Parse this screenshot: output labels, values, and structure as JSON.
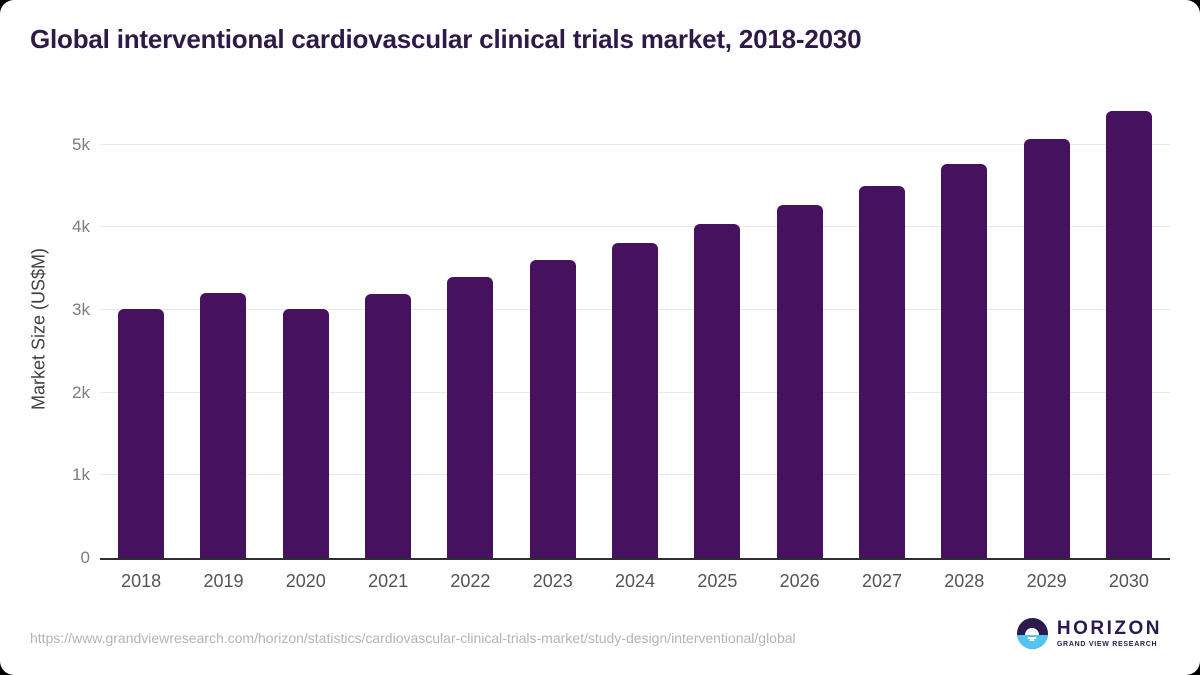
{
  "page": {
    "title": "Global interventional cardiovascular clinical trials market, 2018-2030"
  },
  "chart_data": {
    "type": "bar",
    "title": "Global interventional cardiovascular clinical trials market, 2018-2030",
    "categories": [
      "2018",
      "2019",
      "2020",
      "2021",
      "2022",
      "2023",
      "2024",
      "2025",
      "2026",
      "2027",
      "2028",
      "2029",
      "2030"
    ],
    "values": [
      3010,
      3205,
      3010,
      3195,
      3400,
      3605,
      3805,
      4035,
      4265,
      4500,
      4770,
      5065,
      5410
    ],
    "xlabel": "",
    "ylabel": "Market Size (US$M)",
    "ylim": [
      0,
      5540
    ],
    "yticks": [
      0,
      1000,
      2000,
      3000,
      4000,
      5000
    ],
    "ytick_labels": [
      "0",
      "1k",
      "2k",
      "3k",
      "4k",
      "5k"
    ],
    "grid": true,
    "legend": false,
    "bar_color": "#46125F"
  },
  "footer": {
    "source_url": "https://www.grandviewresearch.com/horizon/statistics/cardiovascular-clinical-trials-market/study-design/interventional/global",
    "logo_name": "HORIZON",
    "logo_subtitle": "GRAND VIEW RESEARCH"
  },
  "colors": {
    "bar": "#46125F",
    "title_text": "#2E1A47",
    "grid_line": "#E8E8E8",
    "axis_line": "#2D2D32",
    "y_tick_text": "#7D7D7D",
    "x_tick_text": "#545454",
    "axis_label_text": "#404040",
    "url_text": "#B4B4B4",
    "logo_purple": "#2A1A4E",
    "logo_blue": "#55C3F0",
    "card_background": "#FFFFFF",
    "page_background": "#000000"
  }
}
